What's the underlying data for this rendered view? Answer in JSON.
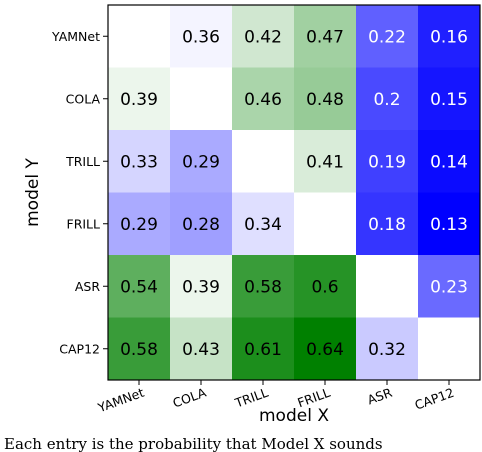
{
  "chart_data": {
    "type": "heatmap",
    "xlabel": "model X",
    "ylabel": "model Y",
    "x_categories": [
      "YAMNet",
      "COLA",
      "TRILL",
      "FRILL",
      "ASR",
      "CAP12"
    ],
    "y_categories": [
      "YAMNet",
      "COLA",
      "TRILL",
      "FRILL",
      "ASR",
      "CAP12"
    ],
    "values": [
      [
        null,
        0.36,
        0.42,
        0.47,
        0.22,
        0.16
      ],
      [
        0.39,
        null,
        0.46,
        0.48,
        0.2,
        0.15
      ],
      [
        0.33,
        0.29,
        null,
        0.41,
        0.19,
        0.14
      ],
      [
        0.29,
        0.28,
        0.34,
        null,
        0.18,
        0.13
      ],
      [
        0.54,
        0.39,
        0.58,
        0.6,
        null,
        0.23
      ],
      [
        0.58,
        0.43,
        0.61,
        0.64,
        0.32,
        null
      ]
    ],
    "colormap": {
      "low_color": "#0000ff",
      "mid_color": "#ffffff",
      "high_color": "#008000",
      "low_value": 0.13,
      "mid_value": 0.37,
      "high_value": 0.64
    },
    "diagonal_color": "#ffffff",
    "grid": false,
    "legend": "none"
  },
  "caption": "Each entry is the probability that Model X sounds"
}
